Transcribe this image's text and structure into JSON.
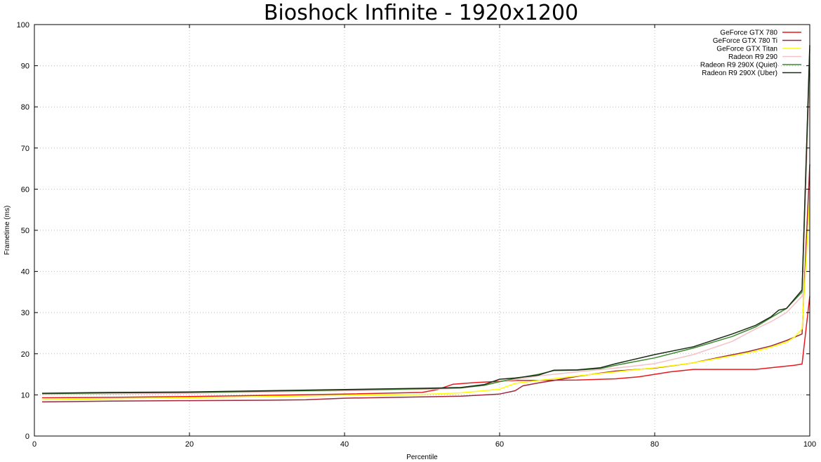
{
  "chart_data": {
    "type": "line",
    "title": "Bioshock Infinite - 1920x1200",
    "xlabel": "Percentile",
    "ylabel": "Frametime (ms)",
    "xlim": [
      0,
      100
    ],
    "ylim": [
      0,
      100
    ],
    "xticks": [
      0,
      20,
      40,
      60,
      80,
      100
    ],
    "yticks": [
      0,
      10,
      20,
      30,
      40,
      50,
      60,
      70,
      80,
      90,
      100
    ],
    "grid": true,
    "legend_position": "top-right",
    "series": [
      {
        "name": "GeForce GTX 780",
        "color": "#e8191c",
        "points": [
          [
            1,
            9.3
          ],
          [
            10,
            9.4
          ],
          [
            20,
            9.6
          ],
          [
            30,
            9.9
          ],
          [
            40,
            10.2
          ],
          [
            50,
            10.6
          ],
          [
            52,
            11.3
          ],
          [
            54,
            12.6
          ],
          [
            57,
            13.0
          ],
          [
            60,
            13.3
          ],
          [
            62,
            13.5
          ],
          [
            70,
            13.6
          ],
          [
            75,
            13.9
          ],
          [
            78,
            14.4
          ],
          [
            80,
            15.0
          ],
          [
            82,
            15.6
          ],
          [
            85,
            16.2
          ],
          [
            90,
            16.2
          ],
          [
            93,
            16.2
          ],
          [
            95,
            16.6
          ],
          [
            98,
            17.2
          ],
          [
            99,
            17.5
          ],
          [
            100,
            34
          ]
        ]
      },
      {
        "name": "GeForce GTX 780 Ti",
        "color": "#a0263a",
        "points": [
          [
            1,
            8.3
          ],
          [
            10,
            8.5
          ],
          [
            20,
            8.6
          ],
          [
            30,
            8.7
          ],
          [
            35,
            8.8
          ],
          [
            40,
            9.2
          ],
          [
            50,
            9.5
          ],
          [
            55,
            9.7
          ],
          [
            60,
            10.2
          ],
          [
            62,
            11.0
          ],
          [
            63,
            12.2
          ],
          [
            65,
            12.9
          ],
          [
            67,
            13.5
          ],
          [
            70,
            14.5
          ],
          [
            75,
            15.8
          ],
          [
            80,
            16.5
          ],
          [
            85,
            17.8
          ],
          [
            88,
            19.0
          ],
          [
            92,
            20.5
          ],
          [
            95,
            21.9
          ],
          [
            97,
            23.2
          ],
          [
            99,
            24.8
          ],
          [
            100,
            66
          ]
        ]
      },
      {
        "name": "GeForce GTX Titan",
        "color": "#ffff00",
        "points": [
          [
            1,
            8.8
          ],
          [
            10,
            9.1
          ],
          [
            20,
            9.3
          ],
          [
            30,
            9.6
          ],
          [
            40,
            9.9
          ],
          [
            50,
            10.1
          ],
          [
            55,
            10.5
          ],
          [
            60,
            11.4
          ],
          [
            62,
            12.8
          ],
          [
            65,
            13.5
          ],
          [
            70,
            14.6
          ],
          [
            75,
            15.6
          ],
          [
            80,
            16.6
          ],
          [
            85,
            17.8
          ],
          [
            90,
            19.5
          ],
          [
            93,
            20.6
          ],
          [
            95,
            21.6
          ],
          [
            97,
            22.8
          ],
          [
            98,
            24
          ],
          [
            99,
            26
          ],
          [
            100,
            58
          ]
        ]
      },
      {
        "name": "Radeon R9 290",
        "color": "#f5c2c8",
        "points": [
          [
            1,
            10.1
          ],
          [
            10,
            10.2
          ],
          [
            20,
            10.4
          ],
          [
            30,
            10.7
          ],
          [
            40,
            11.0
          ],
          [
            50,
            11.3
          ],
          [
            55,
            11.6
          ],
          [
            58,
            12.4
          ],
          [
            60,
            13.2
          ],
          [
            62,
            13.7
          ],
          [
            65,
            14.6
          ],
          [
            70,
            15.6
          ],
          [
            75,
            16.5
          ],
          [
            80,
            17.6
          ],
          [
            85,
            19.8
          ],
          [
            90,
            23.0
          ],
          [
            93,
            26.0
          ],
          [
            95,
            27.8
          ],
          [
            97,
            30.0
          ],
          [
            99,
            34.0
          ],
          [
            100,
            88
          ]
        ]
      },
      {
        "name": "Radeon R9 290X (Quiet)",
        "color": "#3c8a2e",
        "points": [
          [
            1,
            10.3
          ],
          [
            10,
            10.5
          ],
          [
            20,
            10.6
          ],
          [
            30,
            10.9
          ],
          [
            40,
            11.2
          ],
          [
            50,
            11.5
          ],
          [
            55,
            11.7
          ],
          [
            58,
            12.3
          ],
          [
            60,
            13.2
          ],
          [
            62,
            14.0
          ],
          [
            65,
            15.0
          ],
          [
            67,
            15.9
          ],
          [
            70,
            16.0
          ],
          [
            73,
            16.4
          ],
          [
            75,
            17.2
          ],
          [
            80,
            19.0
          ],
          [
            85,
            21.4
          ],
          [
            90,
            24.2
          ],
          [
            93,
            26.5
          ],
          [
            95,
            28.8
          ],
          [
            97,
            31.0
          ],
          [
            99,
            35.0
          ],
          [
            100,
            94
          ]
        ]
      },
      {
        "name": "Radeon R9 290X (Uber)",
        "color": "#1a2a16",
        "points": [
          [
            1,
            10.4
          ],
          [
            10,
            10.6
          ],
          [
            20,
            10.7
          ],
          [
            30,
            11.0
          ],
          [
            40,
            11.3
          ],
          [
            50,
            11.6
          ],
          [
            55,
            11.8
          ],
          [
            58,
            12.5
          ],
          [
            60,
            13.8
          ],
          [
            62,
            14.1
          ],
          [
            65,
            14.8
          ],
          [
            67,
            16.0
          ],
          [
            70,
            16.1
          ],
          [
            73,
            16.6
          ],
          [
            75,
            17.6
          ],
          [
            80,
            19.8
          ],
          [
            85,
            21.7
          ],
          [
            90,
            24.8
          ],
          [
            93,
            26.9
          ],
          [
            95,
            29.0
          ],
          [
            96,
            30.6
          ],
          [
            97,
            31.0
          ],
          [
            99,
            35.5
          ],
          [
            100,
            95
          ]
        ]
      }
    ]
  }
}
